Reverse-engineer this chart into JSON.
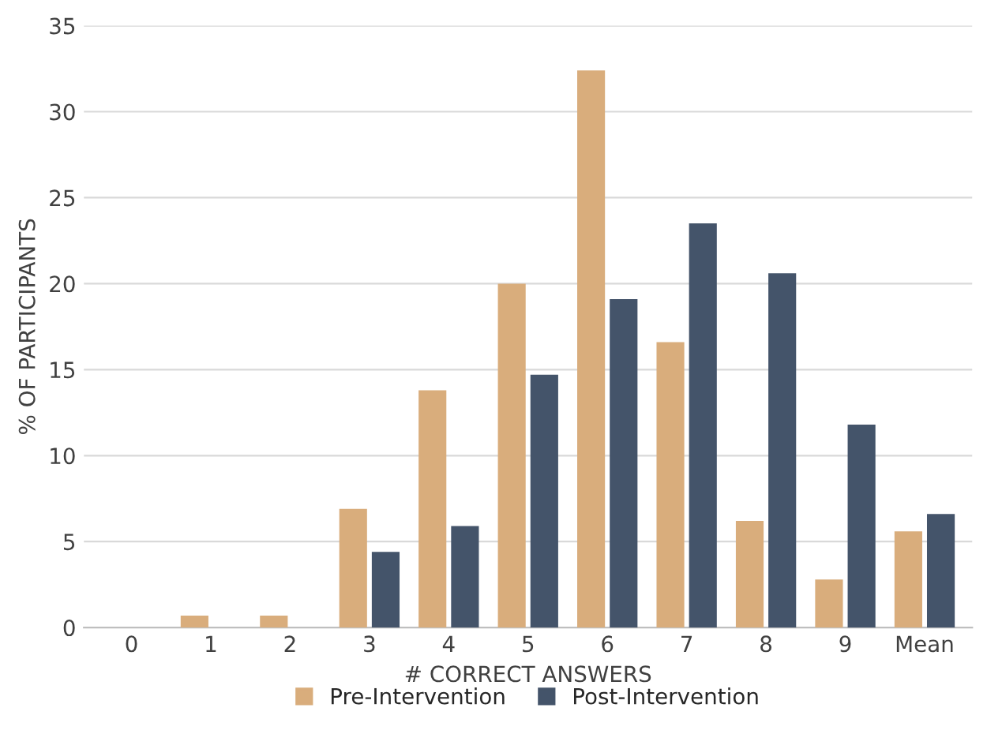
{
  "chart_data": {
    "type": "bar",
    "xlabel": "# CORRECT ANSWERS",
    "ylabel": "% OF PARTICIPANTS",
    "categories": [
      "0",
      "1",
      "2",
      "3",
      "4",
      "5",
      "6",
      "7",
      "8",
      "9",
      "Mean"
    ],
    "series": [
      {
        "name": "Pre-Intervention",
        "color": "#d9ad7c",
        "values": [
          0,
          0.7,
          0.7,
          6.9,
          13.8,
          20.0,
          32.4,
          16.6,
          6.2,
          2.8,
          5.6
        ]
      },
      {
        "name": "Post-Intervention",
        "color": "#44546a",
        "values": [
          0,
          0,
          0,
          4.4,
          5.9,
          14.7,
          19.1,
          23.5,
          20.6,
          11.8,
          6.6
        ]
      }
    ],
    "ylim": [
      0,
      35
    ],
    "yticks": [
      0,
      5,
      10,
      15,
      20,
      25,
      30,
      35
    ],
    "grid": "y",
    "legend": "bottom"
  }
}
